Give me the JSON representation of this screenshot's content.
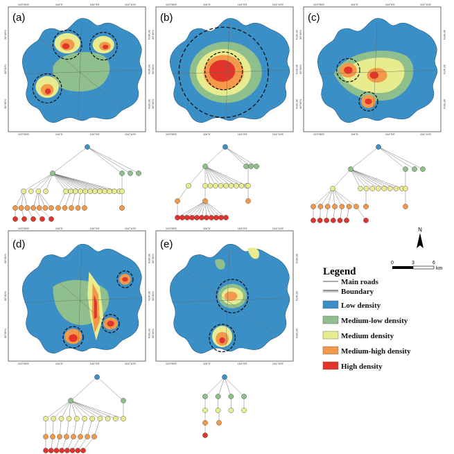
{
  "panels": [
    {
      "id": "a",
      "label": "(a)",
      "top_ticks": [
        "103°55'E",
        "104°E",
        "104°5'E",
        "104°10'E"
      ],
      "bottom_ticks": [
        "103°55'E",
        "104°E",
        "104°5'E",
        "104°10'E"
      ],
      "left_ticks": [
        "30°45'N",
        "30°40'N",
        "30°35'N"
      ],
      "right_ticks": [
        "30°45'N",
        "30°40'N",
        "30°35'N"
      ]
    },
    {
      "id": "b",
      "label": "(b)",
      "top_ticks": [
        "103°55'E",
        "104°E",
        "104°5'E",
        "104°10'E"
      ],
      "bottom_ticks": [
        "103°55'E",
        "104°E",
        "104°5'E",
        "104°10'E"
      ],
      "left_ticks": [
        "30°45'N",
        "30°40'N",
        "30°35'N"
      ],
      "right_ticks": [
        "30°45'N",
        "30°40'N",
        "30°35'N"
      ]
    },
    {
      "id": "c",
      "label": "(c)",
      "top_ticks": [
        "103°55'E",
        "104°E",
        "104°5'E",
        "104°10'E"
      ],
      "bottom_ticks": [
        "103°55'E",
        "104°E",
        "104°5'E",
        "104°10'E"
      ],
      "left_ticks": [
        "30°45'N",
        "30°40'N",
        "30°35'N"
      ],
      "right_ticks": [
        "30°45'N",
        "30°40'N",
        "30°35'N"
      ]
    },
    {
      "id": "d",
      "label": "(d)",
      "top_ticks": [
        "103°55'E",
        "104°E",
        "104°5'E",
        "104°10'E"
      ],
      "bottom_ticks": [
        "103°55'E",
        "104°E",
        "104°5'E",
        "104°10'E"
      ],
      "left_ticks": [
        "30°45'N",
        "30°40'N",
        "30°35'N"
      ],
      "right_ticks": [
        "30°45'N",
        "30°40'N",
        "30°35'N"
      ]
    },
    {
      "id": "e",
      "label": "(e)",
      "top_ticks": [
        "103°55'E",
        "104°E",
        "104°5'E",
        "104°10'E"
      ],
      "bottom_ticks": [
        "103°55'E",
        "104°E",
        "104°5'E",
        "104°10'E"
      ],
      "left_ticks": [
        "30°45'N",
        "30°40'N",
        "30°35'N"
      ],
      "right_ticks": [
        "30°45'N",
        "30°40'N",
        "30°35'N"
      ]
    }
  ],
  "legend": {
    "title": "Legend",
    "items": [
      {
        "label": "Main roads",
        "kind": "line"
      },
      {
        "label": "Boundary",
        "kind": "double-line"
      },
      {
        "label": "Low density",
        "kind": "swatch",
        "color": "#3b8fc7"
      },
      {
        "label": "Medium-low density",
        "kind": "swatch",
        "color": "#8fbf8d"
      },
      {
        "label": "Medium density",
        "kind": "swatch",
        "color": "#e8ec8e"
      },
      {
        "label": "Medium-high density",
        "kind": "swatch",
        "color": "#f39a4a"
      },
      {
        "label": "High density",
        "kind": "swatch",
        "color": "#e3342b"
      }
    ]
  },
  "scale_bar": {
    "ticks": [
      "0",
      "3",
      "6"
    ],
    "unit": "km"
  },
  "north_arrow": {
    "label": "N"
  },
  "colors": {
    "low": "#3b8fc7",
    "medlow": "#8fbf8d",
    "medium": "#e8ec8e",
    "medhigh": "#f39a4a",
    "high": "#e3342b",
    "outside": "#ffffff"
  }
}
